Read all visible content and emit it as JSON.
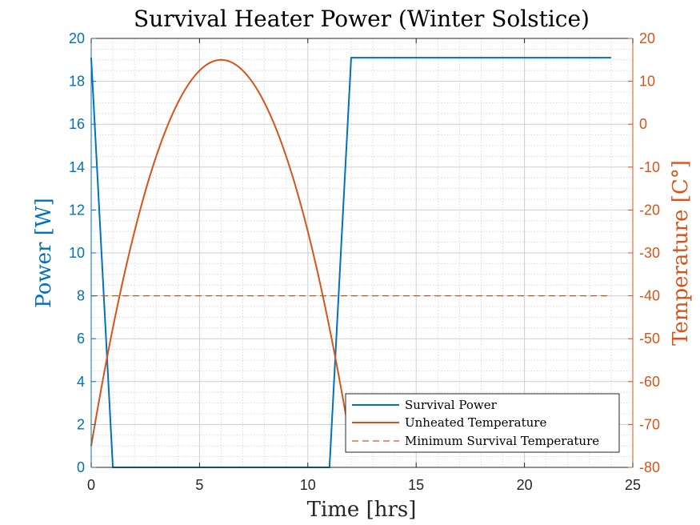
{
  "chart_data": {
    "type": "line",
    "title": "Survival Heater Power (Winter Solstice)",
    "xlabel": "Time [hrs]",
    "ylabel_left": "Power [W]",
    "ylabel_right": "Temperature [C°]",
    "xlim": [
      0,
      25
    ],
    "ylim_left": [
      0,
      20
    ],
    "ylim_right": [
      -80,
      20
    ],
    "xticks": [
      "0",
      "5",
      "10",
      "15",
      "20",
      "25"
    ],
    "yticks_left": [
      "0",
      "2",
      "4",
      "6",
      "8",
      "10",
      "12",
      "14",
      "16",
      "18",
      "20"
    ],
    "yticks_right": [
      "-80",
      "-70",
      "-60",
      "-50",
      "-40",
      "-30",
      "-20",
      "-10",
      "0",
      "10",
      "20"
    ],
    "grid": true,
    "minor_grid": true,
    "legend_position": "bottom-right",
    "colors": {
      "power": "#0072BD",
      "temperature": "#D95319",
      "left_axis": "#0072BD",
      "right_axis": "#D95319"
    },
    "series": [
      {
        "name": "Survival Power",
        "axis": "left",
        "style": "solid",
        "x": [
          0,
          1,
          11,
          12,
          24
        ],
        "y": [
          19.1,
          0,
          0,
          19.1,
          19.1
        ]
      },
      {
        "name": "Unheated Temperature",
        "axis": "right",
        "style": "solid",
        "curve": "parabola",
        "x_range": [
          0,
          12
        ],
        "vertex": [
          6,
          15
        ],
        "endpoint_y": -75
      },
      {
        "name": "Minimum Survival Temperature",
        "axis": "right",
        "style": "dashed",
        "x": [
          0,
          24
        ],
        "y": [
          -40,
          -40
        ]
      }
    ]
  }
}
